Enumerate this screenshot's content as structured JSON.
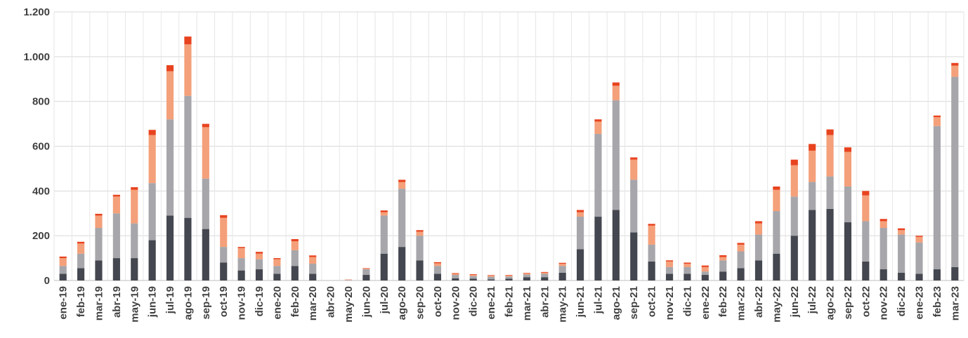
{
  "chart_data": {
    "type": "bar",
    "stacked": true,
    "grid": true,
    "ylim": [
      0,
      1200
    ],
    "yticks": [
      0,
      200,
      400,
      600,
      800,
      1000,
      1200
    ],
    "ytick_labels": [
      "0",
      "200",
      "400",
      "600",
      "800",
      "1.000",
      "1.200"
    ],
    "categories": [
      "ene-19",
      "feb-19",
      "mar-19",
      "abr-19",
      "may-19",
      "jun-19",
      "jul-19",
      "ago-19",
      "sep-19",
      "oct-19",
      "nov-19",
      "dic-19",
      "ene-20",
      "feb-20",
      "mar-20",
      "abr-20",
      "may-20",
      "jun-20",
      "jul-20",
      "ago-20",
      "sep-20",
      "oct-20",
      "nov-20",
      "dic-20",
      "ene-21",
      "feb-21",
      "mar-21",
      "abr-21",
      "may-21",
      "jun-21",
      "jul-21",
      "ago-21",
      "sep-21",
      "oct-21",
      "nov-21",
      "dic-21",
      "ene-22",
      "feb-22",
      "mar-22",
      "abr-22",
      "may-22",
      "jun-22",
      "jul-22",
      "ago-22",
      "sep-22",
      "oct-22",
      "nov-22",
      "dic-22",
      "ene-23",
      "feb-23",
      "mar-23"
    ],
    "series": [
      {
        "color": "#44474f",
        "values": [
          30,
          55,
          90,
          100,
          100,
          180,
          290,
          280,
          230,
          80,
          45,
          50,
          30,
          65,
          30,
          0,
          0,
          25,
          120,
          150,
          90,
          30,
          10,
          8,
          5,
          8,
          15,
          15,
          35,
          140,
          285,
          315,
          215,
          85,
          30,
          30,
          25,
          40,
          55,
          90,
          120,
          200,
          315,
          320,
          260,
          85,
          50,
          35,
          30,
          50,
          60
        ]
      },
      {
        "color": "#a6a6ab",
        "values": [
          35,
          65,
          145,
          200,
          155,
          255,
          430,
          545,
          225,
          70,
          55,
          45,
          35,
          70,
          45,
          0,
          2,
          25,
          170,
          260,
          110,
          35,
          15,
          12,
          12,
          10,
          12,
          15,
          30,
          145,
          370,
          490,
          235,
          75,
          30,
          30,
          15,
          50,
          75,
          115,
          190,
          175,
          125,
          145,
          160,
          180,
          185,
          170,
          140,
          640,
          850
        ]
      },
      {
        "color": "#f4a07a",
        "values": [
          35,
          45,
          55,
          75,
          150,
          215,
          215,
          230,
          230,
          130,
          45,
          25,
          30,
          40,
          30,
          0,
          1,
          3,
          15,
          30,
          18,
          12,
          5,
          5,
          5,
          5,
          5,
          5,
          10,
          20,
          55,
          65,
          90,
          85,
          25,
          15,
          20,
          15,
          30,
          50,
          95,
          140,
          140,
          185,
          155,
          115,
          30,
          20,
          25,
          40,
          50
        ]
      },
      {
        "color": "#e8431f",
        "values": [
          7,
          8,
          8,
          8,
          12,
          23,
          27,
          35,
          15,
          12,
          5,
          8,
          5,
          10,
          7,
          0,
          1,
          2,
          8,
          10,
          7,
          5,
          3,
          3,
          2,
          2,
          2,
          3,
          4,
          10,
          10,
          15,
          10,
          8,
          5,
          5,
          7,
          8,
          8,
          10,
          15,
          25,
          30,
          25,
          20,
          20,
          10,
          8,
          5,
          7,
          12
        ]
      }
    ]
  }
}
